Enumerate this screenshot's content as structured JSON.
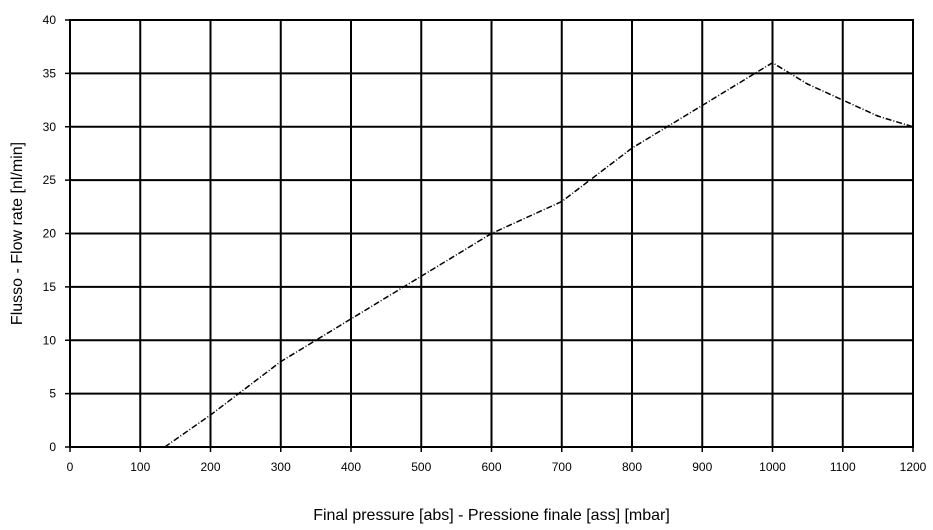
{
  "chart_data": {
    "type": "line",
    "title": "",
    "xlabel": "Final pressure [abs] - Pressione finale [ass] [mbar]",
    "ylabel": "Flusso - Flow rate [nl/min]",
    "xlim": [
      0,
      1200
    ],
    "ylim": [
      0,
      40
    ],
    "x_ticks": [
      "0",
      "100",
      "200",
      "300",
      "400",
      "500",
      "600",
      "700",
      "800",
      "900",
      "1000",
      "1100",
      "1200"
    ],
    "y_ticks": [
      "0",
      "5",
      "10",
      "15",
      "20",
      "25",
      "30",
      "35",
      "40"
    ],
    "grid": true,
    "legend": "none",
    "series": [
      {
        "x": [
          135,
          200,
          300,
          400,
          500,
          600,
          700,
          800,
          900,
          1000,
          1050,
          1100,
          1150,
          1200
        ],
        "y": [
          0,
          3,
          8,
          12,
          16,
          20,
          23,
          28,
          32,
          36,
          34,
          32.5,
          31,
          30
        ],
        "color": "#000000"
      }
    ]
  }
}
